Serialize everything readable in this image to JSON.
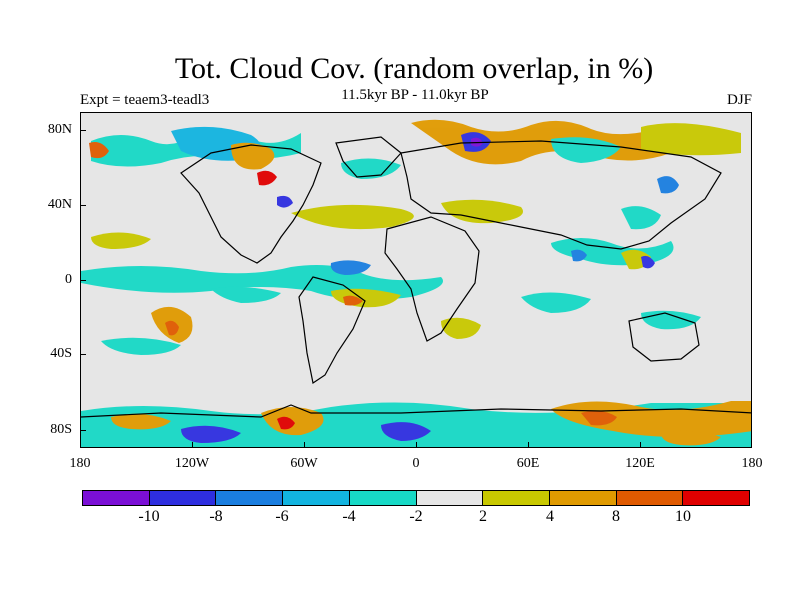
{
  "title": "Tot. Cloud Cov. (random overlap, in %)",
  "subtitle": "11.5kyr BP - 11.0kyr BP",
  "left_label": "Expt = teaem3-teadl3",
  "right_label": "DJF",
  "map": {
    "projection": "cylindrical-equidistant",
    "background_color": "#e6e6e6",
    "lat_ticks": [
      "80N",
      "40N",
      "0",
      "40S",
      "80S"
    ],
    "lon_ticks": [
      "180",
      "120W",
      "60W",
      "0",
      "60E",
      "120E",
      "180"
    ],
    "anomaly_areas": "colored patches marking positive and negative cloud-cover anomalies"
  },
  "colorbar": {
    "colors": [
      "#7b0fd6",
      "#2e2ee0",
      "#1a7ee0",
      "#12b4e0",
      "#17d9c6",
      "#e6e6e6",
      "#c8c800",
      "#e09a00",
      "#e05a00",
      "#e00000"
    ],
    "labels": [
      "-10",
      "-8",
      "-6",
      "-4",
      "-2",
      "2",
      "4",
      "8",
      "10"
    ]
  }
}
